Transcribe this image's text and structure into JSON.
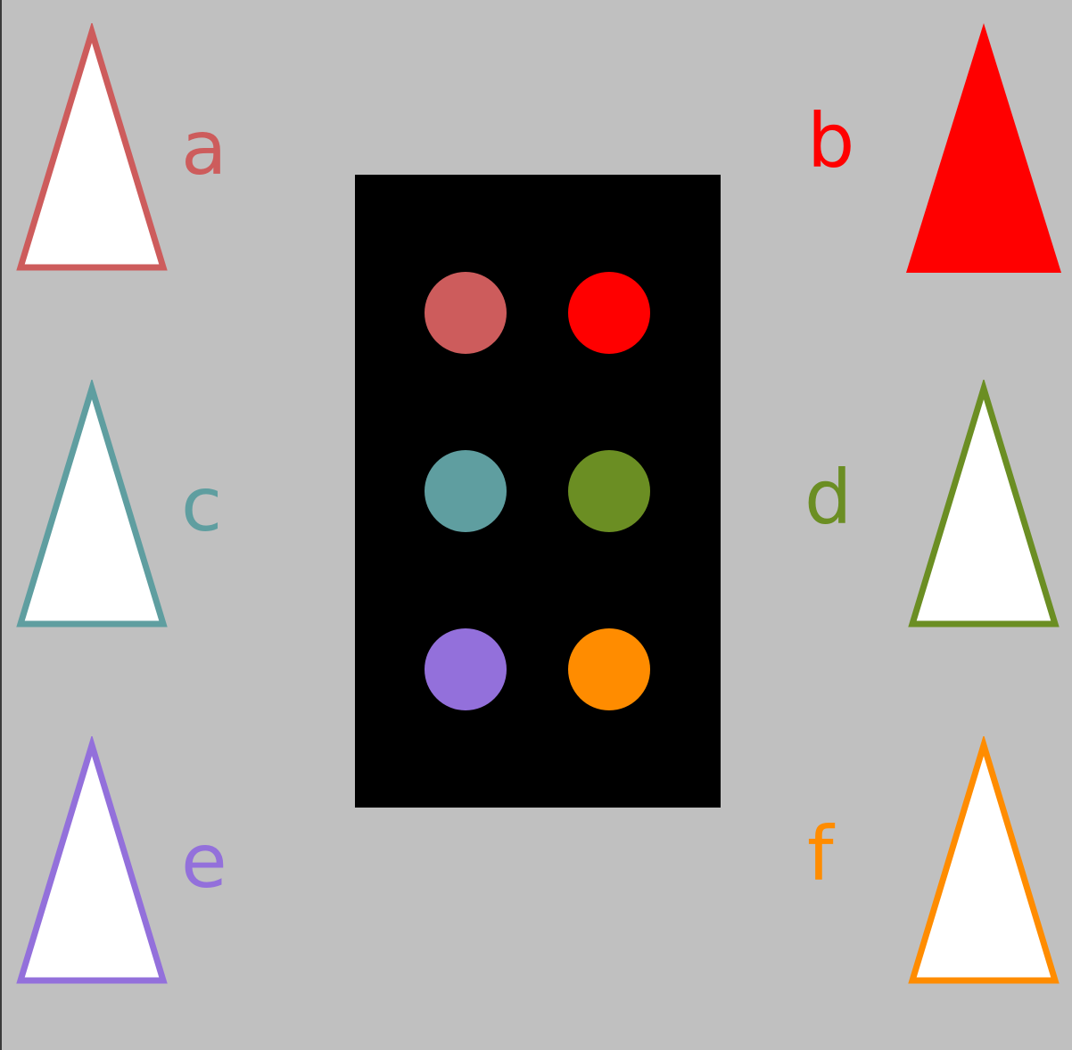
{
  "options": [
    {
      "id": "a",
      "label": "a",
      "color": "#cd5c5c",
      "filled": false
    },
    {
      "id": "b",
      "label": "b",
      "color": "#ff0000",
      "filled": true
    },
    {
      "id": "c",
      "label": "c",
      "color": "#5f9ea0",
      "filled": false
    },
    {
      "id": "d",
      "label": "d",
      "color": "#6b8e23",
      "filled": false
    },
    {
      "id": "e",
      "label": "e",
      "color": "#9370db",
      "filled": false
    },
    {
      "id": "f",
      "label": "f",
      "color": "#ff8c00",
      "filled": false
    }
  ],
  "panel": {
    "dots": [
      {
        "color": "#cd5c5c"
      },
      {
        "color": "#ff0000"
      },
      {
        "color": "#5f9ea0"
      },
      {
        "color": "#6b8e23"
      },
      {
        "color": "#9370db"
      },
      {
        "color": "#ff8c00"
      }
    ]
  }
}
